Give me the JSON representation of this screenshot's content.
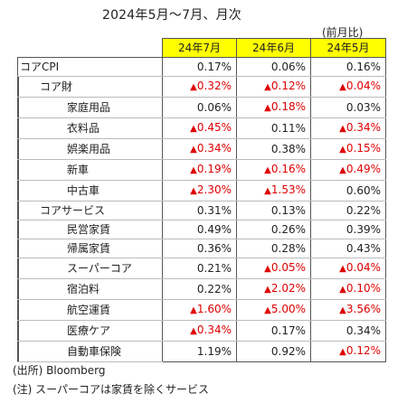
{
  "title": "2024年5月～7月、月次",
  "unit_note": "(前月比)",
  "columns": [
    "24年7月",
    "24年6月",
    "24年5月"
  ],
  "rows": [
    {
      "label": "コアCPI",
      "level": 0,
      "values": [
        "0.17%",
        "0.06%",
        "0.16%"
      ],
      "neg": [
        false,
        false,
        false
      ]
    },
    {
      "label": "コア財",
      "level": 1,
      "values": [
        "0.32%",
        "0.12%",
        "0.04%"
      ],
      "neg": [
        true,
        true,
        true
      ]
    },
    {
      "label": "家庭用品",
      "level": 2,
      "values": [
        "0.06%",
        "0.18%",
        "0.03%"
      ],
      "neg": [
        false,
        true,
        false
      ]
    },
    {
      "label": "衣料品",
      "level": 2,
      "values": [
        "0.45%",
        "0.11%",
        "0.34%"
      ],
      "neg": [
        true,
        false,
        true
      ]
    },
    {
      "label": "娯楽用品",
      "level": 2,
      "values": [
        "0.34%",
        "0.38%",
        "0.15%"
      ],
      "neg": [
        true,
        false,
        true
      ]
    },
    {
      "label": "新車",
      "level": 2,
      "values": [
        "0.19%",
        "0.16%",
        "0.49%"
      ],
      "neg": [
        true,
        true,
        true
      ]
    },
    {
      "label": "中古車",
      "level": 2,
      "values": [
        "2.30%",
        "1.53%",
        "0.60%"
      ],
      "neg": [
        true,
        true,
        false
      ]
    },
    {
      "label": "コアサービス",
      "level": 1,
      "values": [
        "0.31%",
        "0.13%",
        "0.22%"
      ],
      "neg": [
        false,
        false,
        false
      ]
    },
    {
      "label": "民営家賃",
      "level": 2,
      "values": [
        "0.49%",
        "0.26%",
        "0.39%"
      ],
      "neg": [
        false,
        false,
        false
      ]
    },
    {
      "label": "帰属家賃",
      "level": 2,
      "values": [
        "0.36%",
        "0.28%",
        "0.43%"
      ],
      "neg": [
        false,
        false,
        false
      ]
    },
    {
      "label": "スーパーコア",
      "level": 2,
      "values": [
        "0.21%",
        "0.05%",
        "0.04%"
      ],
      "neg": [
        false,
        true,
        true
      ]
    },
    {
      "label": "宿泊料",
      "level": 2,
      "values": [
        "0.22%",
        "2.02%",
        "0.10%"
      ],
      "neg": [
        false,
        true,
        true
      ]
    },
    {
      "label": "航空運賃",
      "level": 2,
      "values": [
        "1.60%",
        "5.00%",
        "3.56%"
      ],
      "neg": [
        true,
        true,
        true
      ]
    },
    {
      "label": "医療ケア",
      "level": 2,
      "values": [
        "0.34%",
        "0.17%",
        "0.34%"
      ],
      "neg": [
        true,
        false,
        false
      ]
    },
    {
      "label": "自動車保険",
      "level": 2,
      "values": [
        "1.19%",
        "0.92%",
        "0.12%"
      ],
      "neg": [
        false,
        false,
        true
      ]
    }
  ],
  "negative_marker": "▲",
  "negative_color": "#e00000",
  "header_color": "#ffff00",
  "source_note": "(出所) Bloomberg",
  "footnote": "(注) スーパーコアは家賃を除くサービス"
}
